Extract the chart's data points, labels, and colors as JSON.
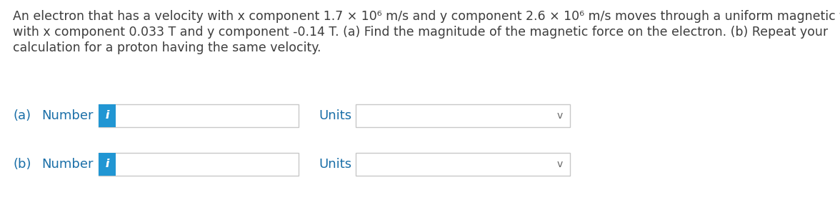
{
  "background_color": "#ffffff",
  "text_color": "#3d3d3d",
  "label_color": "#1a6fa8",
  "i_button_color": "#2196d3",
  "chevron_color": "#666666",
  "input_border_color": "#c8c8c8",
  "para_line1": "An electron that has a velocity with x component 1.7 × 10⁶ m/s and y component 2.6 × 10⁶ m/s moves through a uniform magnetic field",
  "para_line2": "with x component 0.033 T and y component -0.14 T. (a) Find the magnitude of the magnetic force on the electron. (b) Repeat your",
  "para_line3": "calculation for a proton having the same velocity.",
  "row_a_label": "(a)",
  "row_b_label": "(b)",
  "number_label": "Number",
  "units_label": "Units",
  "i_button_text": "i",
  "font_size_para": 12.5,
  "font_size_labels": 13,
  "font_size_i": 11,
  "font_size_chevron": 10
}
